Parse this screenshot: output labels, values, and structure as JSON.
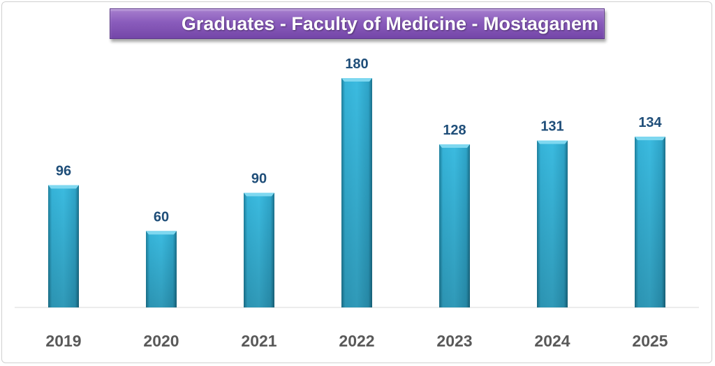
{
  "chart_data": {
    "type": "bar",
    "title": "Graduates - Faculty of Medicine - Mostaganem",
    "categories": [
      "2019",
      "2020",
      "2021",
      "2022",
      "2023",
      "2024",
      "2025"
    ],
    "values": [
      96,
      60,
      90,
      180,
      128,
      131,
      134
    ],
    "xlabel": "",
    "ylabel": "",
    "ylim": [
      0,
      180
    ],
    "grid": false,
    "bar_color": "#2fa8cc",
    "label_color": "#1f4e79"
  }
}
